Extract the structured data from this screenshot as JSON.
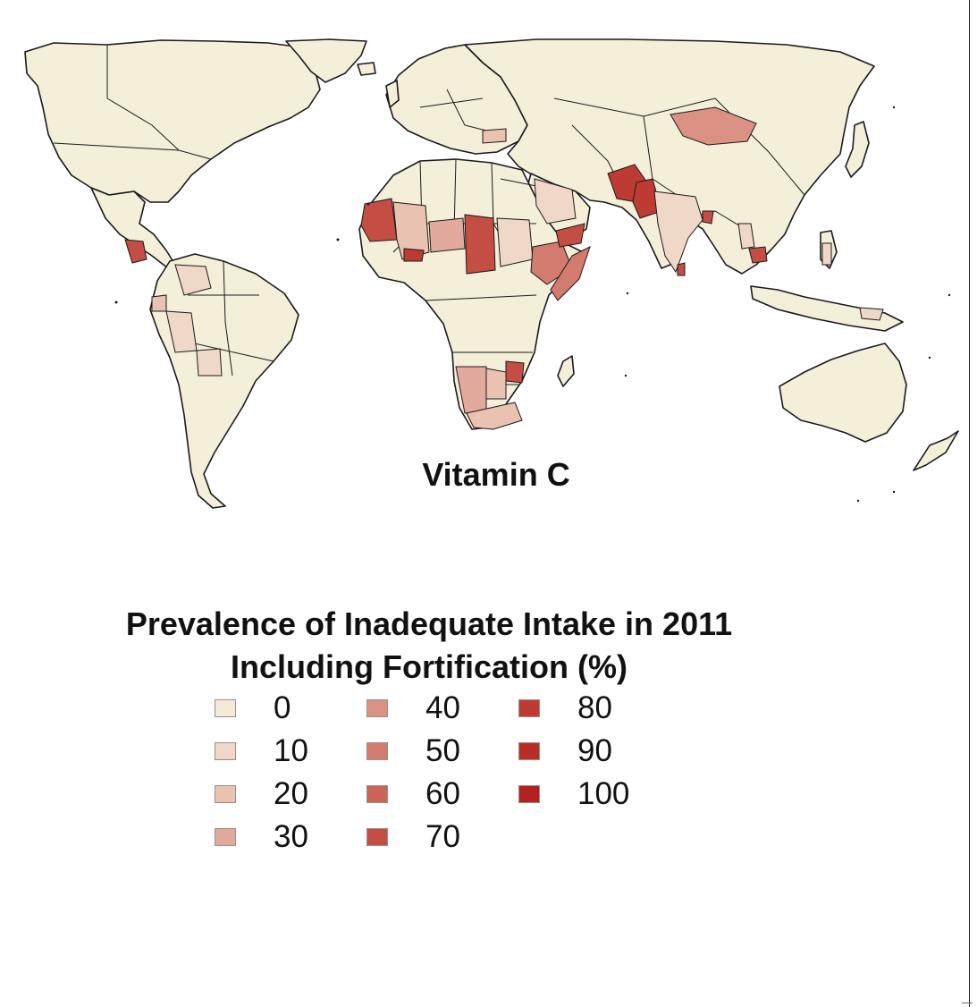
{
  "map": {
    "title": "Vitamin C",
    "base_color": "#f4efd9",
    "border_color": "#1a1a1a"
  },
  "legend": {
    "title_line1": "Prevalence of Inadequate Intake in 2011",
    "title_line2": "Including Fortification (%)",
    "items": [
      {
        "label": "0",
        "color": "#f3ead8"
      },
      {
        "label": "10",
        "color": "#efd8c8"
      },
      {
        "label": "20",
        "color": "#e9c2b2"
      },
      {
        "label": "30",
        "color": "#e2aa9c"
      },
      {
        "label": "40",
        "color": "#db9285"
      },
      {
        "label": "50",
        "color": "#d47b6f"
      },
      {
        "label": "60",
        "color": "#cc6458"
      },
      {
        "label": "70",
        "color": "#c44d44"
      },
      {
        "label": "80",
        "color": "#be3b34"
      },
      {
        "label": "90",
        "color": "#b92d27"
      },
      {
        "label": "100",
        "color": "#b3221e"
      }
    ]
  }
}
